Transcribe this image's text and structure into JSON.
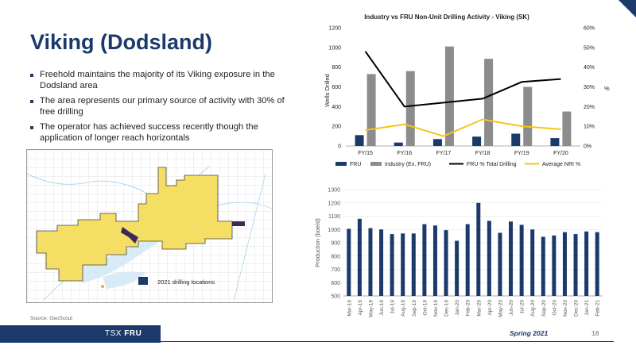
{
  "slide": {
    "title": "Viking (Dodsland)",
    "bullets": [
      "Freehold maintains the majority of its Viking exposure in the Dodsland area",
      "The area represents our primary source of activity with 30% of free drilling",
      "The operator has achieved success recently though the application of longer reach horizontals"
    ],
    "source": "Source: GeoScout",
    "map_legend": "2021 drilling locations",
    "ticker_prefix": "TSX",
    "ticker": "FRU",
    "date": "Spring 2021",
    "page": "18"
  },
  "colors": {
    "navy": "#1b3a6b",
    "gray": "#8c8c8c",
    "black": "#000000",
    "gold": "#f5c518",
    "land": "#f5de64"
  },
  "chart_data": [
    {
      "type": "bar",
      "title": "Industry vs FRU Non-Unit Drilling Activity - Viking (SK)",
      "ylabel": "Wells Drilled",
      "y2label": "%",
      "categories": [
        "FY/15",
        "FY/16",
        "FY/17",
        "FY/18",
        "FY/19",
        "FY/20"
      ],
      "ylim": [
        0,
        1200
      ],
      "yticks": [
        0,
        200,
        400,
        600,
        800,
        1000,
        1200
      ],
      "y2lim": [
        0,
        60
      ],
      "y2ticks": [
        "0%",
        "10%",
        "20%",
        "30%",
        "40%",
        "50%",
        "60%"
      ],
      "series": [
        {
          "name": "FRU",
          "type": "bar",
          "axis": "left",
          "values": [
            110,
            35,
            70,
            95,
            125,
            80
          ]
        },
        {
          "name": "Industry (Ex. FRU)",
          "type": "bar",
          "axis": "left",
          "values": [
            730,
            760,
            1010,
            885,
            600,
            350
          ]
        },
        {
          "name": "FRU % Total Drilling",
          "type": "line",
          "axis": "right",
          "values": [
            48,
            20,
            22,
            24,
            32.5,
            34
          ]
        },
        {
          "name": "Average NRI %",
          "type": "line",
          "axis": "right",
          "values": [
            8,
            11,
            5,
            13.5,
            10,
            8.5
          ]
        }
      ],
      "legend": "bottom"
    },
    {
      "type": "bar",
      "ylabel": "Production (boe/d)",
      "ylim": [
        500,
        1300
      ],
      "yticks": [
        500,
        600,
        700,
        800,
        900,
        1000,
        1100,
        1200,
        1300
      ],
      "categories": [
        "Mar-19",
        "Apr-19",
        "May-19",
        "Jun-19",
        "Jul-19",
        "Aug-19",
        "Sep-19",
        "Oct-19",
        "Nov-19",
        "Dec-19",
        "Jan-20",
        "Feb-20",
        "Mar-20",
        "Apr-20",
        "May-20",
        "Jun-20",
        "Jul-20",
        "Aug-20",
        "Sep-20",
        "Oct-20",
        "Nov-20",
        "Dec-20",
        "Jan-21",
        "Feb-21"
      ],
      "values": [
        1005,
        1080,
        1010,
        1000,
        965,
        970,
        970,
        1040,
        1030,
        995,
        915,
        1040,
        1200,
        1065,
        975,
        1060,
        1035,
        1000,
        945,
        955,
        980,
        965,
        985,
        980
      ]
    }
  ]
}
